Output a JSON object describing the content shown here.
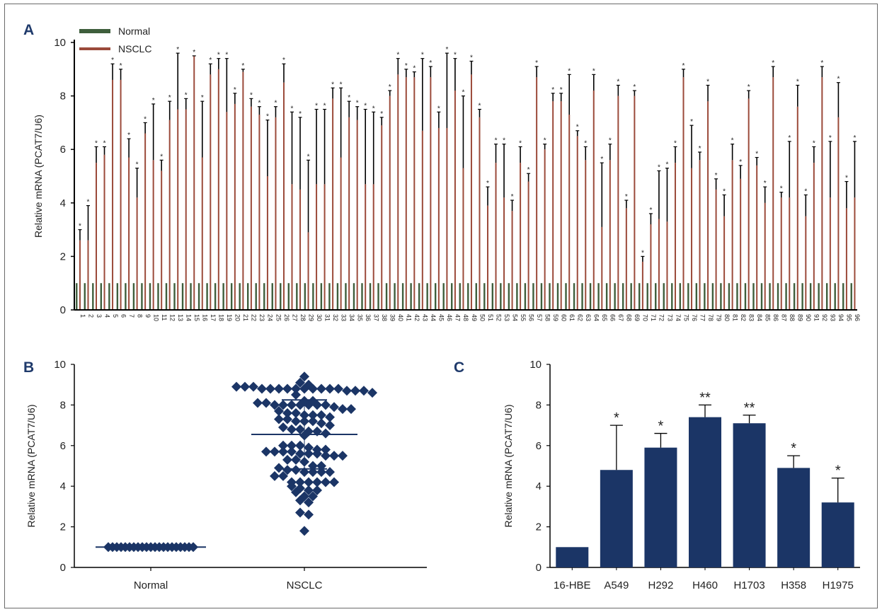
{
  "chart_data": [
    {
      "panel": "A",
      "type": "bar",
      "ylabel": "Relative mRNA (PCAT7/U6)",
      "ylim": [
        0,
        10
      ],
      "yticks": [
        0,
        2,
        4,
        6,
        8,
        10
      ],
      "categories": [
        "1",
        "2",
        "3",
        "4",
        "5",
        "6",
        "7",
        "8",
        "9",
        "10",
        "11",
        "12",
        "13",
        "14",
        "15",
        "16",
        "17",
        "18",
        "19",
        "20",
        "21",
        "22",
        "23",
        "24",
        "25",
        "26",
        "27",
        "28",
        "29",
        "30",
        "31",
        "32",
        "33",
        "34",
        "35",
        "36",
        "37",
        "38",
        "39",
        "40",
        "41",
        "42",
        "43",
        "44",
        "45",
        "46",
        "47",
        "48",
        "49",
        "50",
        "51",
        "52",
        "53",
        "54",
        "55",
        "56",
        "57",
        "58",
        "59",
        "60",
        "61",
        "62",
        "63",
        "64",
        "65",
        "66",
        "67",
        "68",
        "69",
        "70",
        "71",
        "72",
        "73",
        "74",
        "75",
        "76",
        "77",
        "78",
        "79",
        "80",
        "81",
        "82",
        "83",
        "84",
        "85",
        "86",
        "87",
        "88",
        "89",
        "90",
        "91",
        "92",
        "93",
        "94",
        "95",
        "96"
      ],
      "legend": [
        "Normal",
        "NSCLC"
      ],
      "series": [
        {
          "name": "Normal",
          "color": "#3e5e3c",
          "values": [
            1,
            1,
            1,
            1,
            1,
            1,
            1,
            1,
            1,
            1,
            1,
            1,
            1,
            1,
            1,
            1,
            1,
            1,
            1,
            1,
            1,
            1,
            1,
            1,
            1,
            1,
            1,
            1,
            1,
            1,
            1,
            1,
            1,
            1,
            1,
            1,
            1,
            1,
            1,
            1,
            1,
            1,
            1,
            1,
            1,
            1,
            1,
            1,
            1,
            1,
            1,
            1,
            1,
            1,
            1,
            1,
            1,
            1,
            1,
            1,
            1,
            1,
            1,
            1,
            1,
            1,
            1,
            1,
            1,
            1,
            1,
            1,
            1,
            1,
            1,
            1,
            1,
            1,
            1,
            1,
            1,
            1,
            1,
            1,
            1,
            1,
            1,
            1,
            1,
            1,
            1,
            1,
            1,
            1,
            1,
            1
          ]
        },
        {
          "name": "NSCLC",
          "color": "#9b4a3a",
          "values": [
            2.6,
            2.6,
            5.5,
            5.8,
            8.6,
            8.6,
            5.7,
            4.2,
            6.6,
            5.6,
            5.2,
            7.1,
            7.5,
            7.5,
            9.5,
            5.7,
            8.8,
            9.0,
            7.4,
            7.7,
            8.9,
            7.6,
            7.3,
            5.0,
            7.2,
            8.5,
            4.7,
            4.5,
            2.9,
            4.7,
            4.7,
            7.9,
            5.7,
            7.2,
            7.1,
            4.7,
            4.7,
            6.9,
            8.0,
            8.8,
            8.7,
            8.7,
            6.7,
            8.7,
            6.8,
            6.8,
            8.2,
            5.3,
            8.8,
            7.2,
            3.9,
            5.5,
            4.2,
            3.7,
            5.5,
            4.8,
            8.7,
            6.0,
            7.8,
            7.8,
            7.3,
            6.5,
            5.6,
            8.2,
            3.1,
            5.6,
            8.0,
            3.8,
            8.0,
            1.8,
            3.2,
            3.4,
            3.3,
            5.5,
            8.7,
            5.3,
            5.6,
            7.8,
            4.5,
            3.5,
            5.6,
            4.9,
            7.9,
            5.4,
            4.0,
            8.7,
            4.2,
            4.2,
            7.6,
            3.5,
            5.5,
            8.7,
            4.2,
            7.2,
            3.8,
            4.2
          ],
          "errors": [
            0.4,
            1.3,
            0.6,
            0.3,
            0.6,
            0.4,
            0.7,
            1.1,
            0.4,
            2.1,
            0.4,
            0.7,
            2.1,
            0.4,
            0.0,
            2.1,
            0.4,
            0.4,
            2.0,
            0.4,
            0.1,
            0.3,
            0.3,
            2.1,
            0.4,
            0.7,
            2.7,
            2.7,
            2.7,
            2.8,
            2.8,
            0.4,
            2.6,
            0.6,
            0.5,
            2.8,
            2.7,
            0.3,
            0.2,
            0.6,
            0.3,
            0.2,
            2.7,
            0.4,
            0.6,
            2.8,
            1.2,
            2.7,
            0.5,
            0.3,
            0.7,
            0.7,
            2.0,
            0.4,
            0.6,
            0.3,
            0.4,
            0.2,
            0.3,
            0.3,
            1.5,
            0.2,
            0.5,
            0.6,
            2.4,
            0.6,
            0.4,
            0.3,
            0.2,
            0.2,
            0.4,
            1.8,
            2.0,
            0.6,
            0.3,
            1.6,
            0.3,
            0.6,
            0.4,
            0.8,
            0.6,
            0.5,
            0.3,
            0.3,
            0.6,
            0.4,
            0.2,
            2.1,
            0.8,
            0.8,
            0.6,
            0.4,
            2.1,
            1.3,
            1.0,
            2.1
          ]
        }
      ],
      "significance": "*"
    },
    {
      "panel": "B",
      "type": "scatter",
      "ylabel": "Relative mRNA (PCAT7/U6)",
      "ylim": [
        0,
        10
      ],
      "yticks": [
        0,
        2,
        4,
        6,
        8,
        10
      ],
      "categories": [
        "Normal",
        "NSCLC"
      ],
      "color": "#1b3566",
      "groups": [
        {
          "name": "Normal",
          "mean": 1.0,
          "values": [
            1,
            1,
            1,
            1,
            1,
            1,
            1,
            1,
            1,
            1,
            1,
            1,
            1,
            1,
            1,
            1,
            1,
            1,
            1,
            1,
            1
          ]
        },
        {
          "name": "NSCLC",
          "mean": 6.55,
          "sd_low": 4.85,
          "sd_high": 8.25,
          "values": [
            9.4,
            9.1,
            9.0,
            8.9,
            8.9,
            8.9,
            8.8,
            8.8,
            8.8,
            8.8,
            8.8,
            8.8,
            8.8,
            8.8,
            8.8,
            8.8,
            8.7,
            8.7,
            8.7,
            8.6,
            8.5,
            8.2,
            8.2,
            8.1,
            8.1,
            8.0,
            8.0,
            8.0,
            8.0,
            8.0,
            8.0,
            8.0,
            7.9,
            7.8,
            7.8,
            7.7,
            7.6,
            7.6,
            7.5,
            7.5,
            7.5,
            7.4,
            7.3,
            7.3,
            7.2,
            7.2,
            7.2,
            7.1,
            7.0,
            6.9,
            6.8,
            6.8,
            6.7,
            6.7,
            6.6,
            6.5,
            6.0,
            6.0,
            6.0,
            5.9,
            5.8,
            5.8,
            5.7,
            5.7,
            5.7,
            5.7,
            5.6,
            5.6,
            5.6,
            5.5,
            5.5,
            5.5,
            5.3,
            5.3,
            5.2,
            5.0,
            5.0,
            4.9,
            4.8,
            4.8,
            4.7,
            4.7,
            4.7,
            4.7,
            4.5,
            4.5,
            4.2,
            4.2,
            4.2,
            4.2,
            4.2,
            4.2,
            4.0,
            3.9,
            3.8,
            3.8,
            3.7,
            3.5,
            3.5,
            3.3,
            3.2,
            2.7,
            2.6,
            1.8
          ]
        }
      ]
    },
    {
      "panel": "C",
      "type": "bar",
      "ylabel": "Relative mRNA (PCAT7/U6)",
      "ylim": [
        0,
        10
      ],
      "yticks": [
        0,
        2,
        4,
        6,
        8,
        10
      ],
      "categories": [
        "16-HBE",
        "A549",
        "H292",
        "H460",
        "H1703",
        "H358",
        "H1975"
      ],
      "values": [
        1.0,
        4.8,
        5.9,
        7.4,
        7.1,
        4.9,
        3.2
      ],
      "errors": [
        0,
        2.2,
        0.7,
        0.6,
        0.4,
        0.6,
        1.2
      ],
      "significance": [
        "",
        "*",
        "*",
        "**",
        "**",
        "*",
        "*"
      ],
      "color": "#1b3566"
    }
  ]
}
